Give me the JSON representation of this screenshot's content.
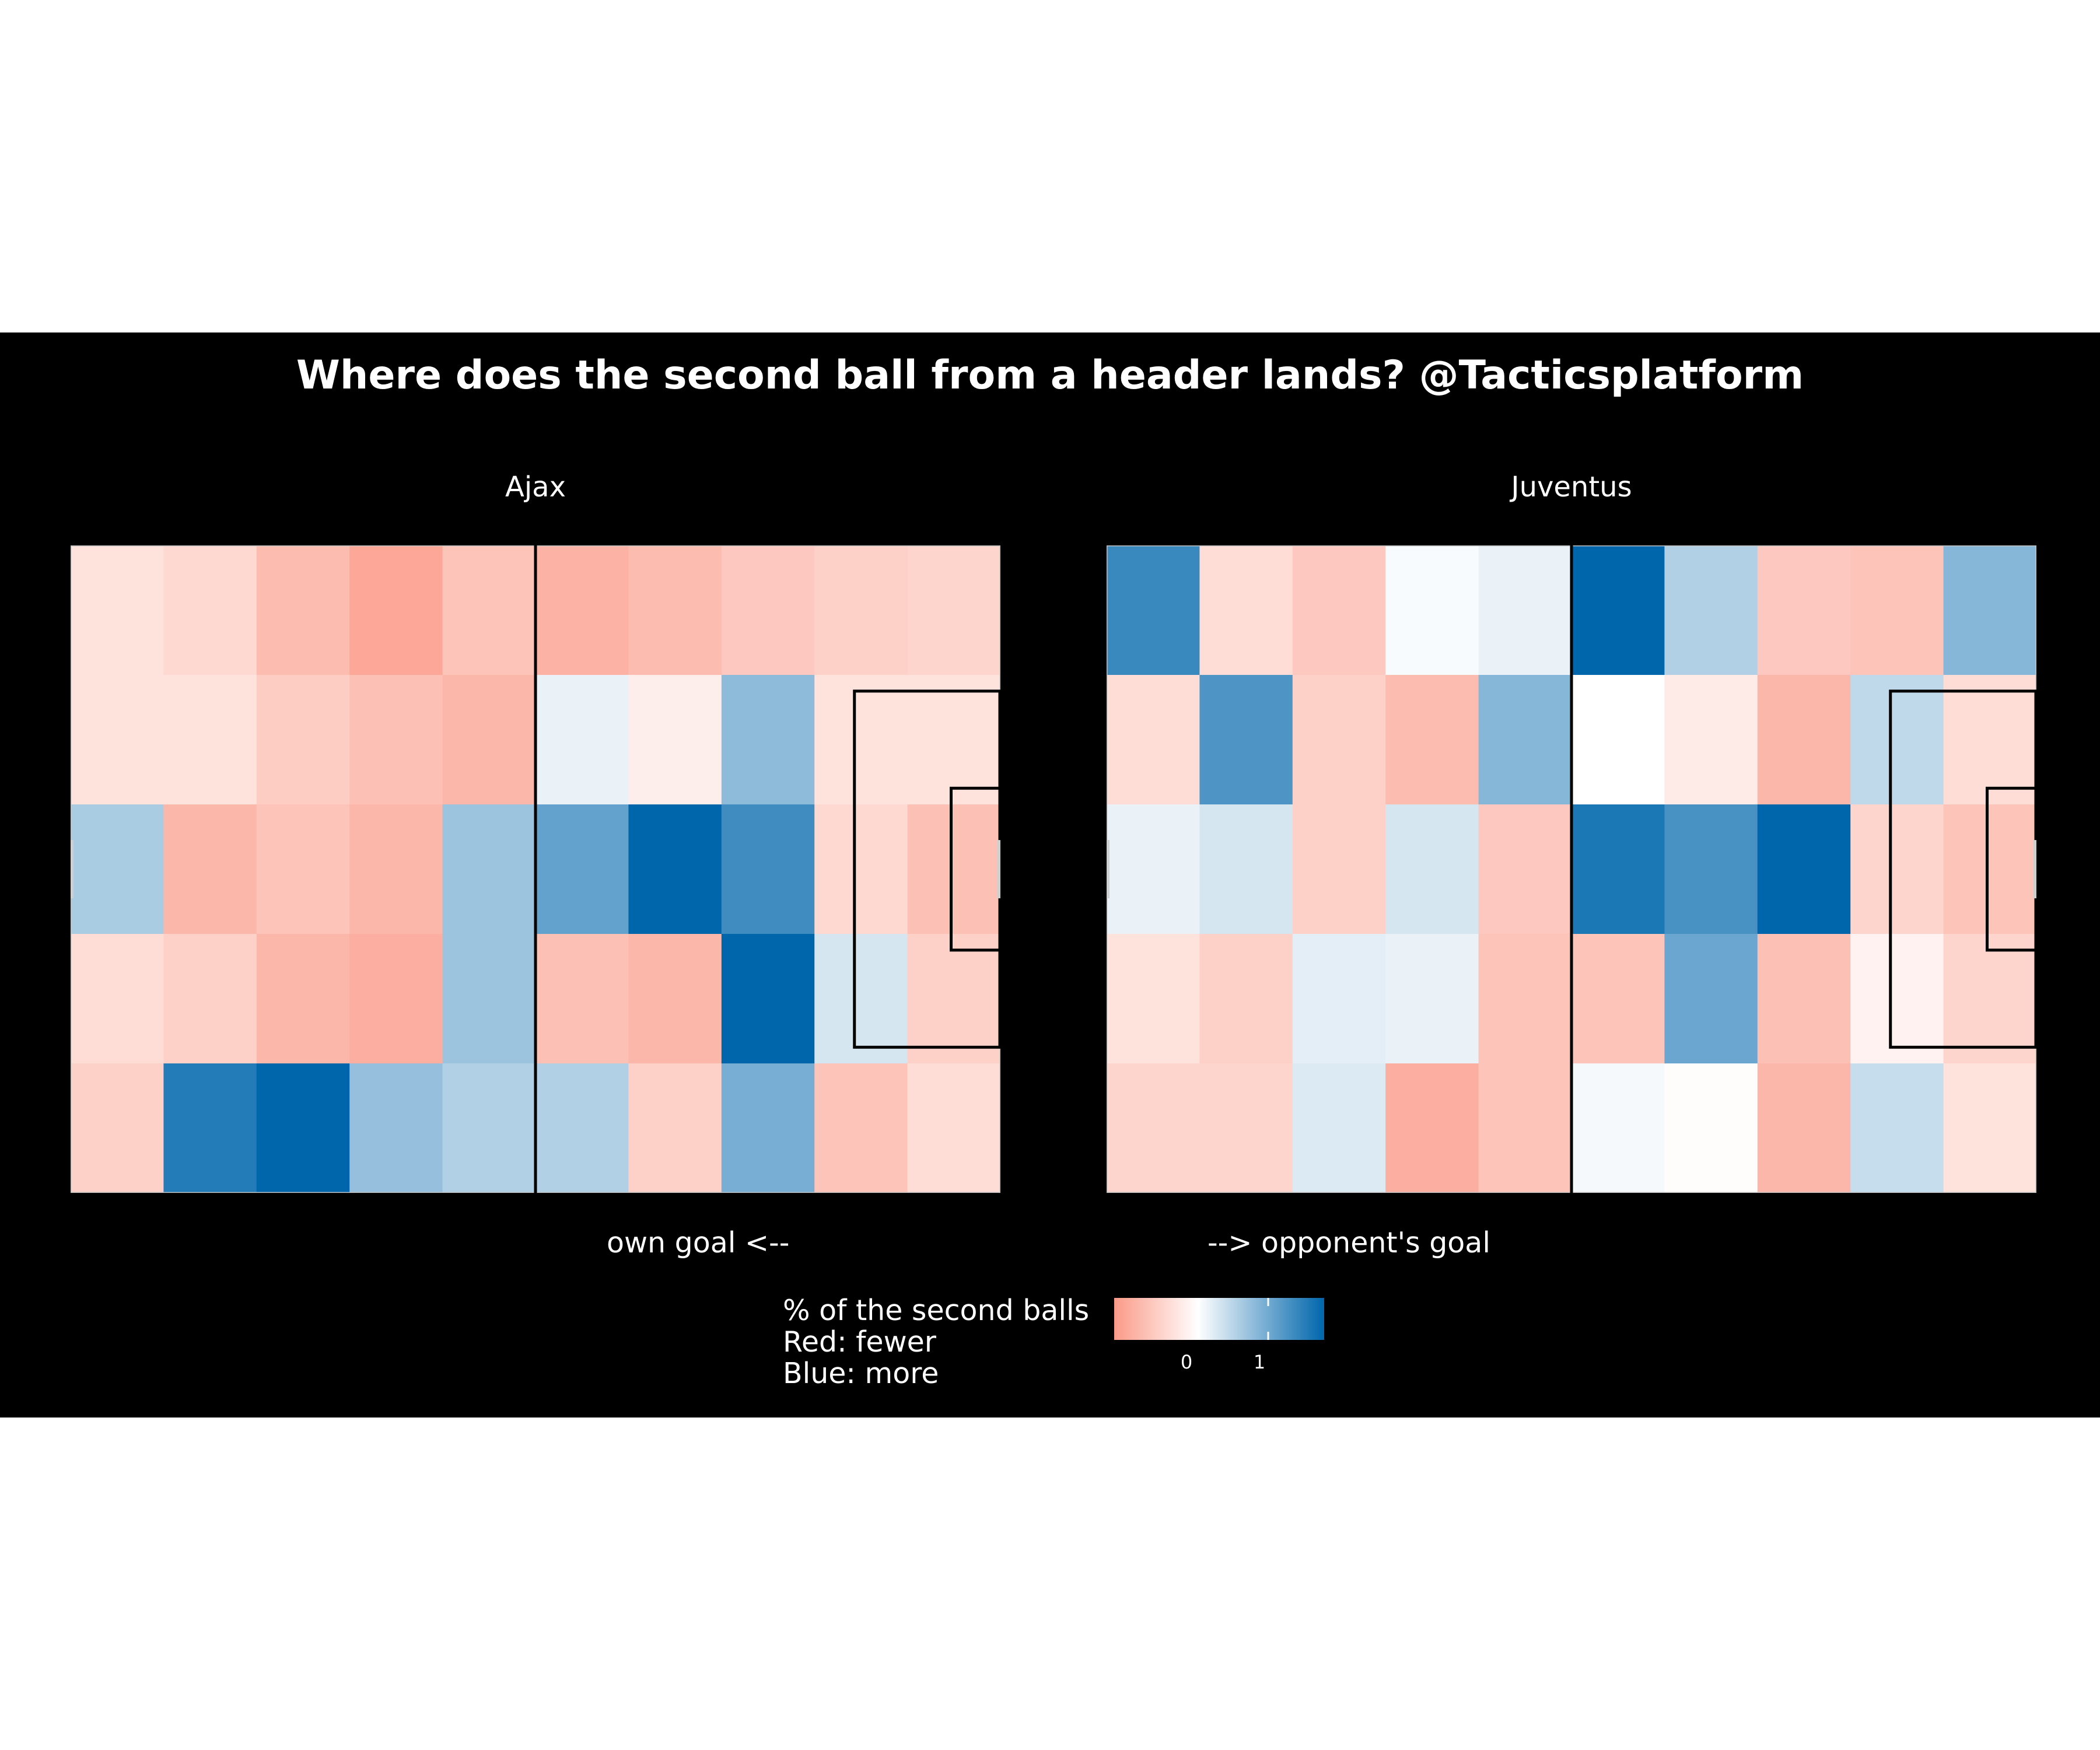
{
  "chart_data": {
    "type": "heatmap",
    "title": "Where does the second ball from a header lands? @Tacticsplatform",
    "xlabel_left": "own goal <--",
    "xlabel_right": "--> opponent's goal",
    "legend": {
      "title_lines": [
        "% of the second balls",
        "Red: fewer",
        "Blue: more"
      ],
      "ticks": [
        0,
        1
      ],
      "color_low": "#fb9a88",
      "color_mid": "#ffffff",
      "color_high": "#0066ac",
      "range": [
        -1.2,
        1.8
      ]
    },
    "grid": {
      "columns": 10,
      "rows": 5,
      "row_order": "top-to-bottom"
    },
    "facets": [
      {
        "name": "Ajax",
        "values": [
          [
            -0.35,
            -0.45,
            -0.8,
            -1.05,
            -0.7,
            -0.9,
            -0.8,
            -0.65,
            -0.55,
            -0.5
          ],
          [
            -0.35,
            -0.35,
            -0.6,
            -0.75,
            -0.85,
            0.15,
            -0.2,
            0.8,
            -0.35,
            -0.35
          ],
          [
            0.6,
            -0.85,
            -0.7,
            -0.85,
            0.7,
            1.1,
            1.8,
            1.35,
            -0.45,
            -0.75
          ],
          [
            -0.4,
            -0.55,
            -0.85,
            -0.95,
            0.7,
            -0.75,
            -0.85,
            1.8,
            0.3,
            -0.55
          ],
          [
            -0.55,
            1.55,
            1.8,
            0.75,
            0.55,
            0.55,
            -0.55,
            0.95,
            -0.7,
            -0.4
          ]
        ]
      },
      {
        "name": "Juventus",
        "values": [
          [
            1.4,
            -0.4,
            -0.65,
            0.05,
            0.15,
            1.8,
            0.55,
            -0.65,
            -0.7,
            0.85
          ],
          [
            -0.4,
            1.25,
            -0.55,
            -0.8,
            0.85,
            0.0,
            -0.25,
            -0.85,
            0.45,
            -0.4
          ],
          [
            0.15,
            0.3,
            -0.55,
            0.3,
            -0.65,
            1.6,
            1.3,
            1.8,
            -0.5,
            -0.7
          ],
          [
            -0.35,
            -0.55,
            0.2,
            0.15,
            -0.7,
            -0.7,
            1.05,
            -0.75,
            -0.15,
            -0.5
          ],
          [
            -0.5,
            -0.5,
            0.25,
            -0.95,
            -0.7,
            0.07,
            -0.03,
            -0.85,
            0.4,
            -0.35
          ]
        ]
      }
    ]
  }
}
